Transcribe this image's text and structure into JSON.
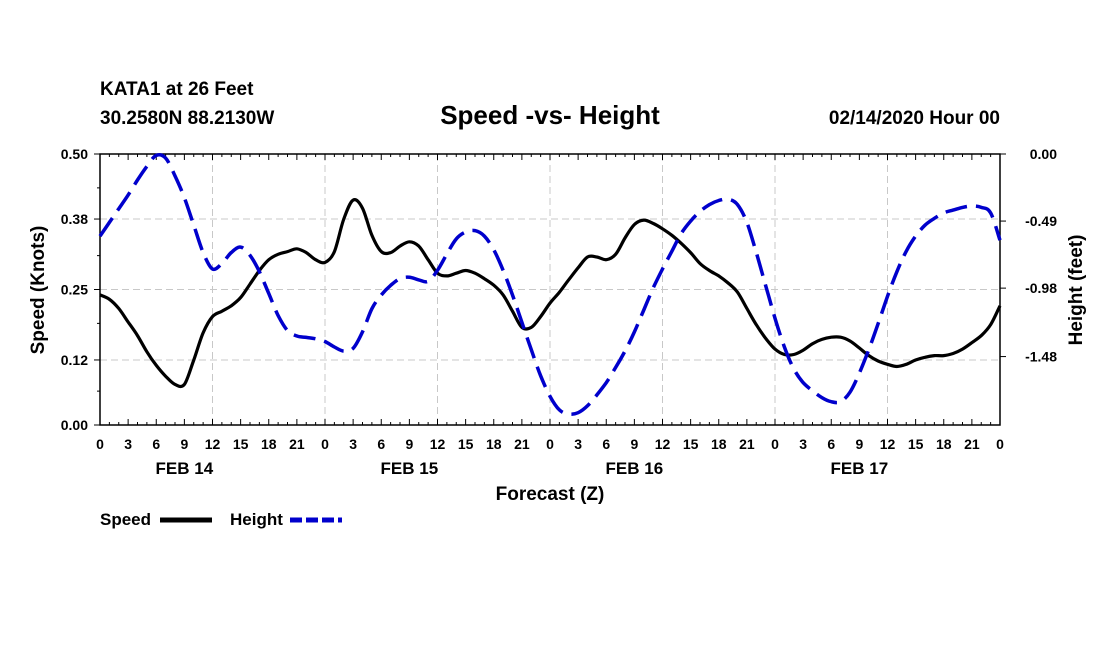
{
  "header": {
    "station": "KATA1 at 26 Feet",
    "coords": "30.2580N 88.2130W",
    "title": "Speed -vs- Height",
    "datetime": "02/14/2020 Hour 00"
  },
  "legend": {
    "speed_label": "Speed",
    "height_label": "Height",
    "position": "bottom-left"
  },
  "chart_data": {
    "type": "line",
    "title": "Speed -vs- Height",
    "xlabel": "Forecast (Z)",
    "ylabel_left": "Speed (Knots)",
    "ylabel_right": "Height (feet)",
    "x_range_hours": [
      0,
      96
    ],
    "x_tick_step_hours": 3,
    "x_tick_labels": [
      "0",
      "3",
      "6",
      "9",
      "12",
      "15",
      "18",
      "21",
      "0",
      "3",
      "6",
      "9",
      "12",
      "15",
      "18",
      "21",
      "0",
      "3",
      "6",
      "9",
      "12",
      "15",
      "18",
      "21",
      "0",
      "3",
      "6",
      "9",
      "12",
      "15",
      "18",
      "21",
      "0"
    ],
    "day_labels": [
      {
        "label": "FEB 14",
        "hour": 9
      },
      {
        "label": "FEB 15",
        "hour": 33
      },
      {
        "label": "FEB 16",
        "hour": 57
      },
      {
        "label": "FEB 17",
        "hour": 81
      }
    ],
    "ylim_left": [
      0,
      0.5
    ],
    "left_ticks": [
      0.0,
      0.12,
      0.25,
      0.38,
      0.5
    ],
    "left_tick_labels": [
      "0.00",
      "0.12",
      "0.25",
      "0.38",
      "0.50"
    ],
    "ylim_right": [
      -1.98,
      0.0
    ],
    "right_ticks": [
      0.0,
      -0.49,
      -0.98,
      -1.48
    ],
    "right_tick_labels": [
      "0.00",
      "-0.49",
      "-0.98",
      "-1.48"
    ],
    "grid": true,
    "series": [
      {
        "name": "Speed",
        "axis": "left",
        "color": "#000000",
        "dash": "solid",
        "points": [
          [
            0,
            0.24
          ],
          [
            1,
            0.232
          ],
          [
            2,
            0.215
          ],
          [
            3,
            0.19
          ],
          [
            4,
            0.165
          ],
          [
            5,
            0.135
          ],
          [
            6,
            0.11
          ],
          [
            7,
            0.09
          ],
          [
            8,
            0.075
          ],
          [
            9,
            0.075
          ],
          [
            10,
            0.12
          ],
          [
            11,
            0.17
          ],
          [
            12,
            0.2
          ],
          [
            13,
            0.21
          ],
          [
            14,
            0.22
          ],
          [
            15,
            0.235
          ],
          [
            16,
            0.26
          ],
          [
            17,
            0.285
          ],
          [
            18,
            0.305
          ],
          [
            19,
            0.315
          ],
          [
            20,
            0.32
          ],
          [
            21,
            0.325
          ],
          [
            22,
            0.318
          ],
          [
            23,
            0.305
          ],
          [
            24,
            0.3
          ],
          [
            25,
            0.32
          ],
          [
            26,
            0.38
          ],
          [
            27,
            0.415
          ],
          [
            28,
            0.4
          ],
          [
            29,
            0.35
          ],
          [
            30,
            0.32
          ],
          [
            31,
            0.318
          ],
          [
            32,
            0.33
          ],
          [
            33,
            0.338
          ],
          [
            34,
            0.33
          ],
          [
            35,
            0.305
          ],
          [
            36,
            0.28
          ],
          [
            37,
            0.275
          ],
          [
            38,
            0.28
          ],
          [
            39,
            0.285
          ],
          [
            40,
            0.28
          ],
          [
            41,
            0.27
          ],
          [
            42,
            0.258
          ],
          [
            43,
            0.24
          ],
          [
            44,
            0.21
          ],
          [
            45,
            0.18
          ],
          [
            46,
            0.18
          ],
          [
            47,
            0.2
          ],
          [
            48,
            0.225
          ],
          [
            49,
            0.245
          ],
          [
            50,
            0.268
          ],
          [
            51,
            0.29
          ],
          [
            52,
            0.31
          ],
          [
            53,
            0.31
          ],
          [
            54,
            0.305
          ],
          [
            55,
            0.315
          ],
          [
            56,
            0.345
          ],
          [
            57,
            0.37
          ],
          [
            58,
            0.378
          ],
          [
            59,
            0.372
          ],
          [
            60,
            0.362
          ],
          [
            61,
            0.35
          ],
          [
            62,
            0.335
          ],
          [
            63,
            0.318
          ],
          [
            64,
            0.298
          ],
          [
            65,
            0.285
          ],
          [
            66,
            0.275
          ],
          [
            67,
            0.262
          ],
          [
            68,
            0.245
          ],
          [
            69,
            0.215
          ],
          [
            70,
            0.185
          ],
          [
            71,
            0.16
          ],
          [
            72,
            0.14
          ],
          [
            73,
            0.13
          ],
          [
            74,
            0.13
          ],
          [
            75,
            0.138
          ],
          [
            76,
            0.15
          ],
          [
            77,
            0.158
          ],
          [
            78,
            0.162
          ],
          [
            79,
            0.162
          ],
          [
            80,
            0.155
          ],
          [
            81,
            0.142
          ],
          [
            82,
            0.128
          ],
          [
            83,
            0.118
          ],
          [
            84,
            0.112
          ],
          [
            85,
            0.108
          ],
          [
            86,
            0.112
          ],
          [
            87,
            0.12
          ],
          [
            88,
            0.125
          ],
          [
            89,
            0.128
          ],
          [
            90,
            0.128
          ],
          [
            91,
            0.132
          ],
          [
            92,
            0.14
          ],
          [
            93,
            0.152
          ],
          [
            94,
            0.165
          ],
          [
            95,
            0.185
          ],
          [
            96,
            0.22
          ]
        ]
      },
      {
        "name": "Height",
        "axis": "right",
        "color": "#0000cc",
        "dash": "dashed",
        "points": [
          [
            0,
            -0.6
          ],
          [
            1,
            -0.5
          ],
          [
            2,
            -0.4
          ],
          [
            3,
            -0.3
          ],
          [
            4,
            -0.19
          ],
          [
            5,
            -0.09
          ],
          [
            6,
            -0.01
          ],
          [
            7,
            -0.03
          ],
          [
            8,
            -0.16
          ],
          [
            9,
            -0.32
          ],
          [
            10,
            -0.52
          ],
          [
            11,
            -0.72
          ],
          [
            12,
            -0.84
          ],
          [
            13,
            -0.8
          ],
          [
            14,
            -0.72
          ],
          [
            15,
            -0.68
          ],
          [
            16,
            -0.74
          ],
          [
            17,
            -0.86
          ],
          [
            18,
            -1.02
          ],
          [
            19,
            -1.18
          ],
          [
            20,
            -1.29
          ],
          [
            21,
            -1.33
          ],
          [
            22,
            -1.34
          ],
          [
            23,
            -1.35
          ],
          [
            24,
            -1.37
          ],
          [
            25,
            -1.41
          ],
          [
            26,
            -1.44
          ],
          [
            27,
            -1.42
          ],
          [
            28,
            -1.3
          ],
          [
            29,
            -1.13
          ],
          [
            30,
            -1.03
          ],
          [
            31,
            -0.96
          ],
          [
            32,
            -0.91
          ],
          [
            33,
            -0.9
          ],
          [
            34,
            -0.92
          ],
          [
            35,
            -0.93
          ],
          [
            36,
            -0.85
          ],
          [
            37,
            -0.73
          ],
          [
            38,
            -0.62
          ],
          [
            39,
            -0.57
          ],
          [
            40,
            -0.56
          ],
          [
            41,
            -0.6
          ],
          [
            42,
            -0.7
          ],
          [
            43,
            -0.85
          ],
          [
            44,
            -1.03
          ],
          [
            45,
            -1.23
          ],
          [
            46,
            -1.43
          ],
          [
            47,
            -1.62
          ],
          [
            48,
            -1.77
          ],
          [
            49,
            -1.87
          ],
          [
            50,
            -1.9
          ],
          [
            51,
            -1.89
          ],
          [
            52,
            -1.84
          ],
          [
            53,
            -1.76
          ],
          [
            54,
            -1.67
          ],
          [
            55,
            -1.56
          ],
          [
            56,
            -1.44
          ],
          [
            57,
            -1.3
          ],
          [
            58,
            -1.14
          ],
          [
            59,
            -0.98
          ],
          [
            60,
            -0.84
          ],
          [
            61,
            -0.71
          ],
          [
            62,
            -0.58
          ],
          [
            63,
            -0.49
          ],
          [
            64,
            -0.42
          ],
          [
            65,
            -0.37
          ],
          [
            66,
            -0.34
          ],
          [
            67,
            -0.33
          ],
          [
            68,
            -0.37
          ],
          [
            69,
            -0.5
          ],
          [
            70,
            -0.72
          ],
          [
            71,
            -0.96
          ],
          [
            72,
            -1.2
          ],
          [
            73,
            -1.41
          ],
          [
            74,
            -1.57
          ],
          [
            75,
            -1.67
          ],
          [
            76,
            -1.73
          ],
          [
            77,
            -1.78
          ],
          [
            78,
            -1.81
          ],
          [
            79,
            -1.81
          ],
          [
            80,
            -1.74
          ],
          [
            81,
            -1.6
          ],
          [
            82,
            -1.43
          ],
          [
            83,
            -1.24
          ],
          [
            84,
            -1.04
          ],
          [
            85,
            -0.86
          ],
          [
            86,
            -0.71
          ],
          [
            87,
            -0.6
          ],
          [
            88,
            -0.52
          ],
          [
            89,
            -0.47
          ],
          [
            90,
            -0.43
          ],
          [
            91,
            -0.41
          ],
          [
            92,
            -0.39
          ],
          [
            93,
            -0.38
          ],
          [
            94,
            -0.39
          ],
          [
            95,
            -0.43
          ],
          [
            96,
            -0.63
          ]
        ]
      }
    ]
  }
}
